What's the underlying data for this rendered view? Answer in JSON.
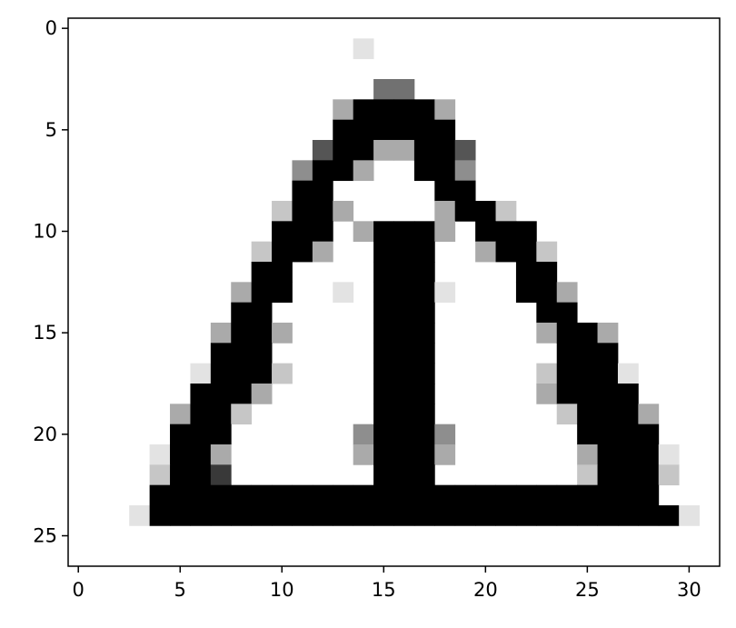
{
  "chart_data": {
    "type": "heatmap",
    "title": "",
    "xlabel": "",
    "ylabel": "",
    "colormap": "gray_r",
    "background": "#ffffff",
    "frame_color": "#000000",
    "grid": false,
    "legend": "none",
    "xlim": [
      -0.5,
      31.5
    ],
    "ylim": [
      26.5,
      -0.5
    ],
    "x_ticks": [
      0,
      5,
      10,
      15,
      20,
      25,
      30
    ],
    "y_ticks": [
      0,
      5,
      10,
      15,
      20,
      25
    ],
    "x_tick_labels": [
      "0",
      "5",
      "10",
      "15",
      "20",
      "25",
      "30"
    ],
    "y_tick_labels": [
      "0",
      "5",
      "10",
      "15",
      "20",
      "25"
    ],
    "value_range": [
      0,
      1
    ],
    "rows": [
      "00000000000000000000000000000000",
      "00000000000000100000000000000000",
      "00000000000000000000000000000000",
      "00000000000000055000000000000000",
      "00000000000003999930000000000000",
      "00000000000009999990000000000000",
      "00000000000069933996000000000000",
      "00000000000499300994000000000000",
      "00000000000990000099000000000000",
      "00000000002993000039920000000000",
      "00000000009990399930999000000000",
      "00000000029930099900399200000000",
      "00000000099000099900009900000000",
      "00000000399001099910009930000000",
      "00000000990000099900000990000000",
      "00000003993000099900000399300000",
      "00000009990000099900000099900000",
      "00000019992000099900000299910000",
      "00000099930000099900000399990000",
      "00000399200000099900000029993000",
      "00000999000000499940000009999000",
      "00001993000000399930000003999100",
      "00002997000000099900000002999200",
      "00009999999999999999999999999000",
      "00019999999999999999999999999910",
      "00000000000000000000000000000000",
      "00000000000000000000000000000000"
    ]
  }
}
